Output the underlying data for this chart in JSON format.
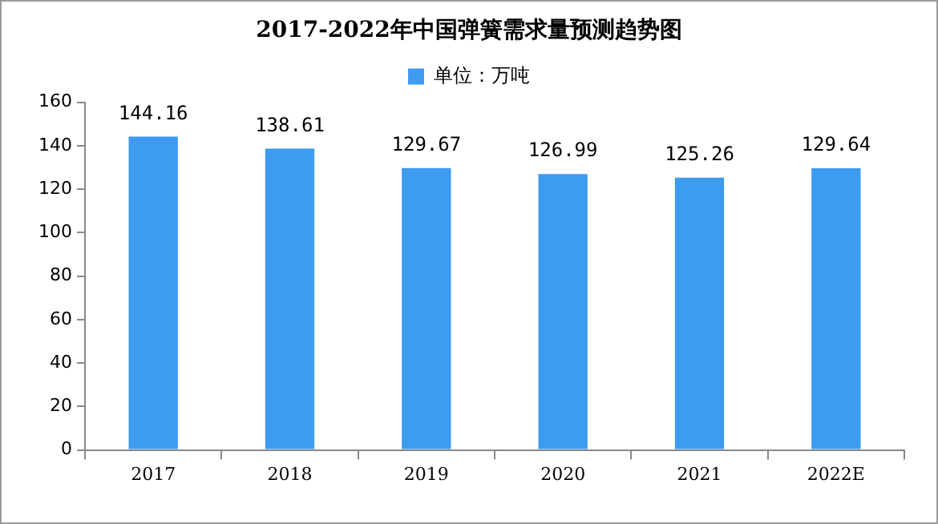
{
  "chart_data": {
    "type": "bar",
    "title": "2017-2022年中国弹簧需求量预测趋势图",
    "categories": [
      "2017",
      "2018",
      "2019",
      "2020",
      "2021",
      "2022E"
    ],
    "series": [
      {
        "name": "单位：万吨",
        "color": "#3d9bf0",
        "values": [
          144.16,
          138.61,
          129.67,
          126.99,
          125.26,
          129.64
        ]
      }
    ],
    "ylim": [
      0,
      160
    ],
    "yticks": [
      0,
      20,
      40,
      60,
      80,
      100,
      120,
      140,
      160
    ],
    "grid": false,
    "legend": "top",
    "data_labels": true
  }
}
